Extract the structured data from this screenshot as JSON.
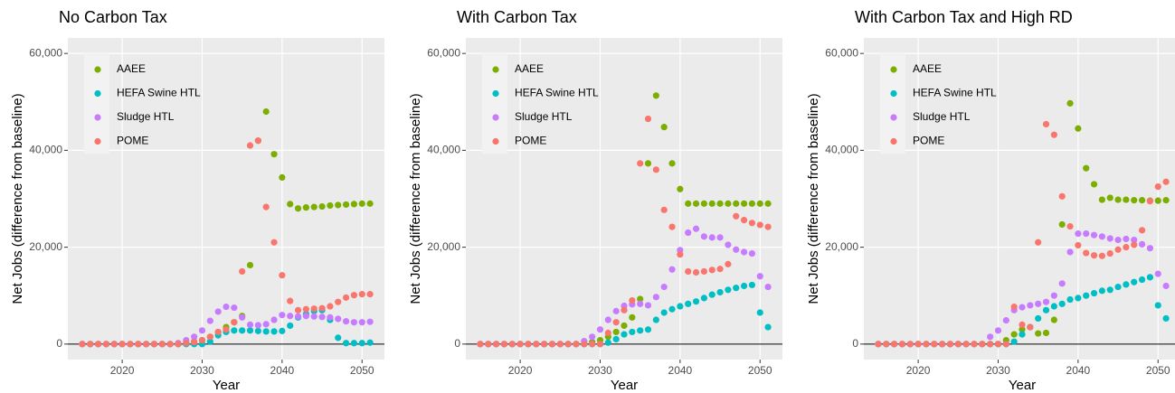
{
  "chart_data": [
    {
      "type": "scatter",
      "title": "No Carbon Tax",
      "x_label": "Year",
      "y_label": "Net Jobs (difference from baseline)",
      "x": [
        2015,
        2016,
        2017,
        2018,
        2019,
        2020,
        2021,
        2022,
        2023,
        2024,
        2025,
        2026,
        2027,
        2028,
        2029,
        2030,
        2031,
        2032,
        2033,
        2034,
        2035,
        2036,
        2037,
        2038,
        2039,
        2040,
        2041,
        2042,
        2043,
        2044,
        2045,
        2046,
        2047,
        2048,
        2049,
        2050,
        2051
      ],
      "xlim": [
        2013.2,
        2052.8
      ],
      "xticks": [
        2020,
        2030,
        2040,
        2050
      ],
      "ylim": [
        -3200,
        63200
      ],
      "yticks": [
        0,
        {
          "value": 20000,
          "label": "20,000"
        },
        {
          "value": 40000,
          "label": "40,000"
        },
        {
          "value": 60000,
          "label": "60,000"
        }
      ],
      "grid": true,
      "hline": 0,
      "legend": "top-left",
      "series": [
        {
          "name": "AAEE",
          "color": "#7CAE00",
          "values": [
            0,
            0,
            0,
            0,
            0,
            0,
            0,
            0,
            0,
            0,
            0,
            0,
            0,
            300,
            500,
            800,
            1500,
            2500,
            3500,
            4500,
            5800,
            16300,
            42000,
            48000,
            39200,
            34400,
            28900,
            28000,
            28200,
            28300,
            28400,
            28600,
            28700,
            28800,
            28900,
            29000,
            29000
          ]
        },
        {
          "name": "HEFA Swine HTL",
          "color": "#00BFC4",
          "values": [
            0,
            0,
            0,
            0,
            0,
            0,
            0,
            0,
            0,
            0,
            0,
            0,
            0,
            0,
            0,
            0,
            500,
            1800,
            2500,
            2800,
            2800,
            2800,
            2700,
            2600,
            2600,
            2700,
            3800,
            5500,
            6200,
            6800,
            7000,
            5000,
            1300,
            200,
            200,
            200,
            300
          ]
        },
        {
          "name": "Sludge HTL",
          "color": "#C77CFF",
          "values": [
            0,
            0,
            0,
            0,
            0,
            0,
            0,
            0,
            0,
            0,
            0,
            0,
            200,
            800,
            1500,
            2800,
            4800,
            6700,
            7700,
            7500,
            5500,
            4000,
            3900,
            4100,
            5000,
            6000,
            5800,
            5700,
            5800,
            5700,
            5600,
            5500,
            5200,
            4700,
            4500,
            4500,
            4600
          ]
        },
        {
          "name": "POME",
          "color": "#F8766D",
          "values": [
            0,
            0,
            0,
            0,
            0,
            0,
            0,
            0,
            0,
            0,
            0,
            0,
            0,
            200,
            400,
            800,
            1500,
            2500,
            3000,
            4500,
            15000,
            41000,
            42000,
            28300,
            21000,
            14200,
            8900,
            7000,
            7200,
            7300,
            7400,
            7800,
            8700,
            9600,
            10100,
            10300,
            10300
          ]
        }
      ]
    },
    {
      "type": "scatter",
      "title": "With Carbon Tax",
      "x_label": "Year",
      "y_label": "Net Jobs (difference from baseline)",
      "x": [
        2015,
        2016,
        2017,
        2018,
        2019,
        2020,
        2021,
        2022,
        2023,
        2024,
        2025,
        2026,
        2027,
        2028,
        2029,
        2030,
        2031,
        2032,
        2033,
        2034,
        2035,
        2036,
        2037,
        2038,
        2039,
        2040,
        2041,
        2042,
        2043,
        2044,
        2045,
        2046,
        2047,
        2048,
        2049,
        2050,
        2051
      ],
      "xlim": [
        2013.2,
        2052.8
      ],
      "xticks": [
        2020,
        2030,
        2040,
        2050
      ],
      "ylim": [
        -3200,
        63200
      ],
      "yticks": [
        0,
        {
          "value": 20000,
          "label": "20,000"
        },
        {
          "value": 40000,
          "label": "40,000"
        },
        {
          "value": 60000,
          "label": "60,000"
        }
      ],
      "grid": true,
      "hline": 0,
      "legend": "top-left",
      "series": [
        {
          "name": "AAEE",
          "color": "#7CAE00",
          "values": [
            0,
            0,
            0,
            0,
            0,
            0,
            0,
            0,
            0,
            0,
            0,
            0,
            0,
            0,
            400,
            800,
            1500,
            2500,
            3800,
            5500,
            9300,
            37300,
            51300,
            44800,
            37300,
            32000,
            29000,
            29000,
            29000,
            29000,
            29000,
            29000,
            29000,
            29000,
            29000,
            29000,
            29000
          ]
        },
        {
          "name": "HEFA Swine HTL",
          "color": "#00BFC4",
          "values": [
            0,
            0,
            0,
            0,
            0,
            0,
            0,
            0,
            0,
            0,
            0,
            0,
            0,
            0,
            0,
            0,
            300,
            1000,
            2000,
            2500,
            2800,
            3000,
            5000,
            6500,
            7200,
            7800,
            8300,
            8800,
            9500,
            10200,
            10700,
            11200,
            11600,
            12000,
            12200,
            6500,
            3500
          ]
        },
        {
          "name": "Sludge HTL",
          "color": "#C77CFF",
          "values": [
            0,
            0,
            0,
            0,
            0,
            0,
            0,
            0,
            0,
            0,
            0,
            0,
            0,
            600,
            1500,
            3000,
            5000,
            6800,
            7900,
            8200,
            8300,
            8000,
            9700,
            11800,
            15400,
            19400,
            23000,
            23800,
            22200,
            22000,
            22000,
            20500,
            19500,
            19000,
            18700,
            14000,
            11800
          ]
        },
        {
          "name": "POME",
          "color": "#F8766D",
          "values": [
            0,
            0,
            0,
            0,
            0,
            0,
            0,
            0,
            0,
            0,
            0,
            0,
            0,
            0,
            0,
            0,
            2300,
            4500,
            7000,
            9000,
            37300,
            46500,
            36000,
            27700,
            24200,
            18500,
            15000,
            14800,
            15000,
            15300,
            15500,
            16500,
            26400,
            25600,
            25000,
            24600,
            24200
          ]
        }
      ]
    },
    {
      "type": "scatter",
      "title": "With Carbon Tax and High RD",
      "x_label": "Year",
      "y_label": "Net Jobs (difference from baseline)",
      "x": [
        2015,
        2016,
        2017,
        2018,
        2019,
        2020,
        2021,
        2022,
        2023,
        2024,
        2025,
        2026,
        2027,
        2028,
        2029,
        2030,
        2031,
        2032,
        2033,
        2034,
        2035,
        2036,
        2037,
        2038,
        2039,
        2040,
        2041,
        2042,
        2043,
        2044,
        2045,
        2046,
        2047,
        2048,
        2049,
        2050,
        2051
      ],
      "xlim": [
        2013.2,
        2052.8
      ],
      "xticks": [
        2020,
        2030,
        2040,
        2050
      ],
      "ylim": [
        -3200,
        63200
      ],
      "yticks": [
        0,
        {
          "value": 20000,
          "label": "20,000"
        },
        {
          "value": 40000,
          "label": "40,000"
        },
        {
          "value": 60000,
          "label": "60,000"
        }
      ],
      "grid": true,
      "hline": 0,
      "legend": "top-left",
      "series": [
        {
          "name": "AAEE",
          "color": "#7CAE00",
          "values": [
            0,
            0,
            0,
            0,
            0,
            0,
            0,
            0,
            0,
            0,
            0,
            0,
            0,
            0,
            0,
            0,
            800,
            2000,
            3000,
            3500,
            2200,
            2300,
            5000,
            24700,
            49700,
            44500,
            36300,
            33000,
            29800,
            30200,
            29800,
            29800,
            29700,
            29700,
            29600,
            29600,
            29700
          ]
        },
        {
          "name": "HEFA Swine HTL",
          "color": "#00BFC4",
          "values": [
            0,
            0,
            0,
            0,
            0,
            0,
            0,
            0,
            0,
            0,
            0,
            0,
            0,
            0,
            0,
            0,
            0,
            500,
            2000,
            3500,
            5300,
            7000,
            7800,
            8300,
            9200,
            9500,
            10000,
            10500,
            11000,
            11200,
            11800,
            12300,
            12800,
            13300,
            13800,
            8000,
            5300
          ]
        },
        {
          "name": "Sludge HTL",
          "color": "#C77CFF",
          "values": [
            0,
            0,
            0,
            0,
            0,
            0,
            0,
            0,
            0,
            0,
            0,
            0,
            0,
            0,
            1500,
            2800,
            4900,
            7000,
            7600,
            8000,
            8300,
            8700,
            10000,
            12500,
            19000,
            22800,
            22800,
            22500,
            22200,
            21800,
            21500,
            21700,
            21500,
            20600,
            19800,
            14500,
            12000
          ]
        },
        {
          "name": "POME",
          "color": "#F8766D",
          "values": [
            0,
            0,
            0,
            0,
            0,
            0,
            0,
            0,
            0,
            0,
            0,
            0,
            0,
            0,
            0,
            0,
            0,
            7700,
            4000,
            3500,
            21000,
            45400,
            43200,
            30500,
            24300,
            20400,
            18800,
            18300,
            18200,
            18700,
            19500,
            20000,
            20500,
            23500,
            29500,
            32500,
            33500
          ]
        }
      ]
    }
  ]
}
